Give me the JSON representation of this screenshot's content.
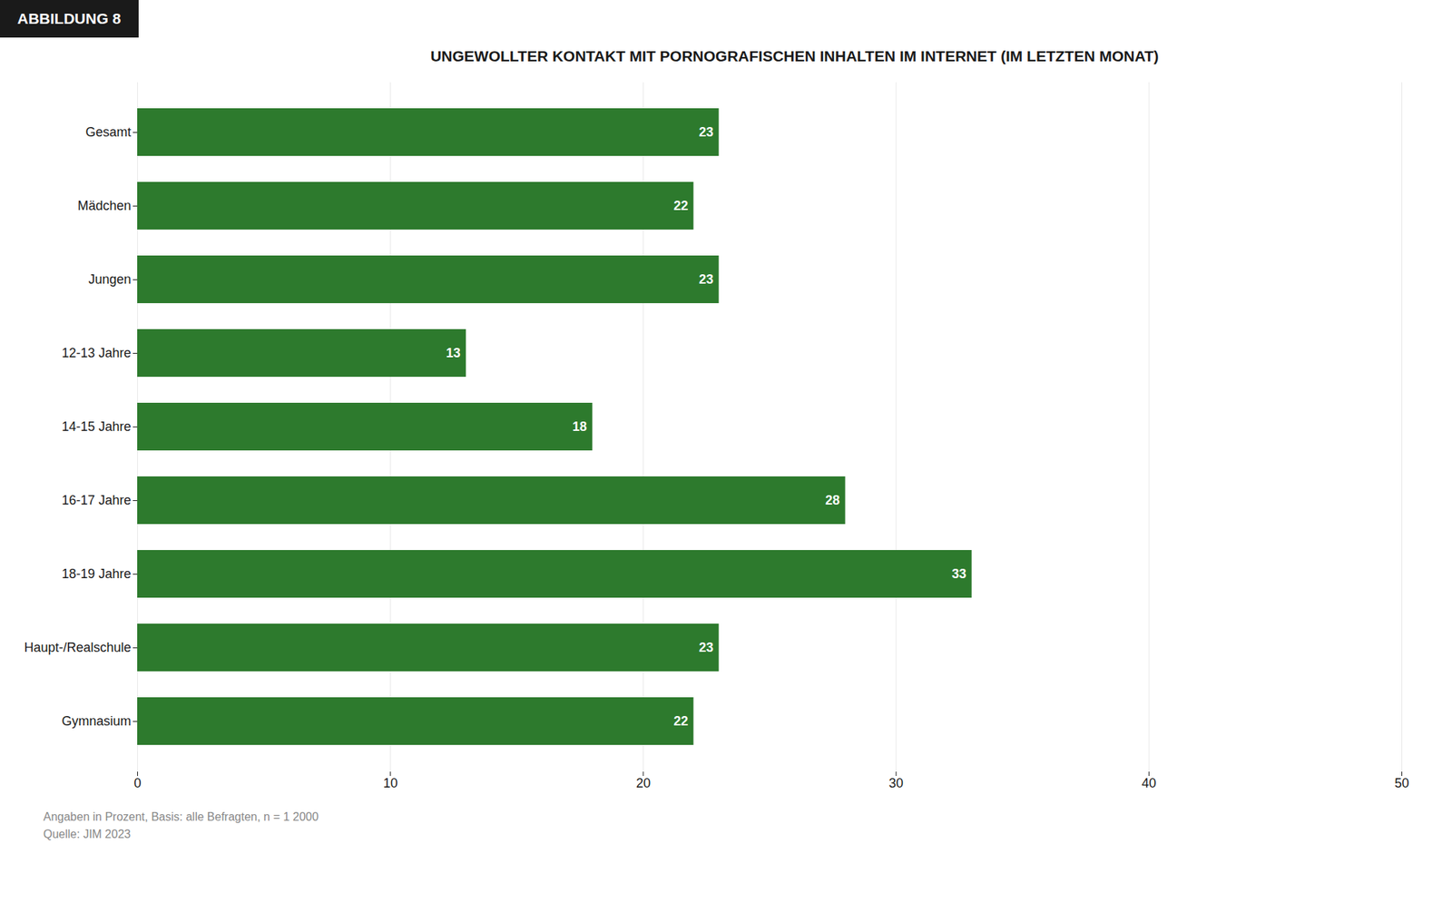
{
  "chart_data": {
    "type": "bar",
    "orientation": "horizontal",
    "title": "UNGEWOLLTER KONTAKT MIT PORNOGRAFISCHEN INHALTEN IM INTERNET (IM LETZTEN MONAT)",
    "annotations": [
      "ABBILDUNG 8",
      "Angaben in Prozent, Basis: alle Befragten, n = 1 2000",
      "Quelle: JIM 2023"
    ],
    "categories": [
      "Gesamt",
      "Mädchen",
      "Jungen",
      "12-13 Jahre",
      "14-15 Jahre",
      "16-17 Jahre",
      "18-19 Jahre",
      "Haupt-/Realschule",
      "Gymnasium"
    ],
    "values": [
      23,
      22,
      23,
      13,
      18,
      28,
      33,
      23,
      22
    ],
    "color": "#2d7a2d",
    "xlim": [
      0,
      50
    ],
    "xticks": [
      0,
      10,
      20,
      30,
      40,
      50
    ],
    "grid": true,
    "data_labels": true
  }
}
